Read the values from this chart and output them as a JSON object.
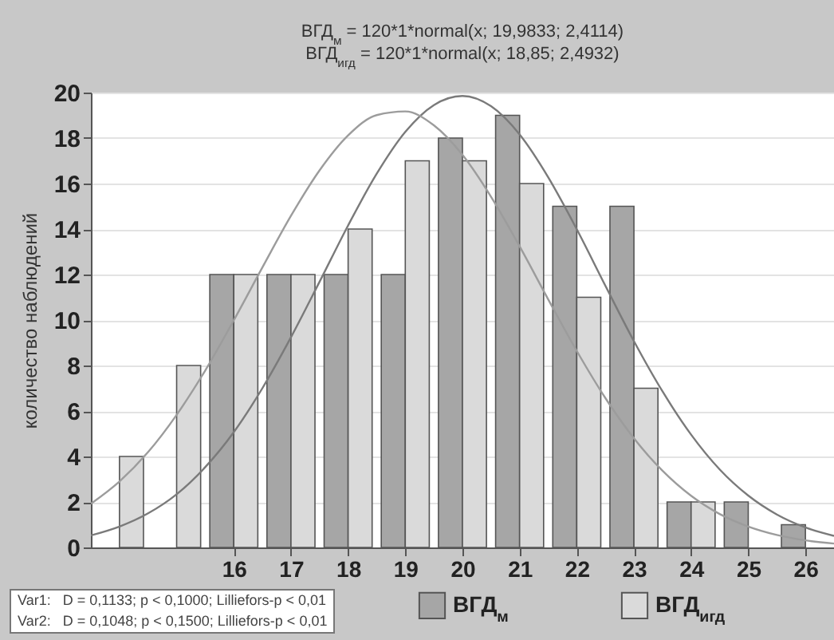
{
  "chart_data": {
    "type": "bar",
    "title": "ВГД$_{м}$ = 120*1*normal(x; 19,9833; 2,4114)",
    "subtitle": "ВГД$_{игд}$ = 120*1*normal(x; 18,85; 2,4932)",
    "ylabel": "количество наблюдений",
    "x": [
      14,
      15,
      16,
      17,
      18,
      19,
      20,
      21,
      22,
      23,
      24,
      25,
      26
    ],
    "xlim": [
      13.5,
      26.5
    ],
    "xticks": [
      16,
      17,
      18,
      19,
      20,
      21,
      22,
      23,
      24,
      25,
      26
    ],
    "ylim": [
      0,
      20
    ],
    "yticks": [
      0,
      2,
      4,
      6,
      8,
      10,
      12,
      14,
      16,
      18,
      20
    ],
    "grid": "y",
    "legend": "bottom",
    "annotations": [
      "Var1:   D = 0,1133; p < 0,1000; Lilliefors-p < 0,01",
      "Var2:   D = 0,1048; p < 0,1500; Lilliefors-p < 0,01"
    ],
    "series": [
      {
        "name": "ВГД$_{м}$",
        "color": "#a6a6a6",
        "values": [
          null,
          null,
          12,
          12,
          12,
          12,
          18,
          19,
          15,
          15,
          2,
          2,
          1
        ]
      },
      {
        "name": "ВГД$_{игд}$",
        "color": "#dadada",
        "values": [
          4,
          8,
          12,
          12,
          14,
          17,
          17,
          16,
          11,
          7,
          2,
          null,
          null
        ]
      },
      {
        "type": "line",
        "color": "#7a7a7a",
        "x": [
          13.5,
          14,
          14.5,
          15,
          15.5,
          16,
          16.5,
          17,
          17.5,
          18,
          18.5,
          19,
          19.5,
          20,
          20.5,
          21,
          21.5,
          22,
          22.5,
          23,
          23.5,
          24,
          24.5,
          25,
          25.5,
          26,
          26.5
        ],
        "values": [
          0.53,
          0.92,
          1.5,
          2.34,
          3.53,
          5.07,
          7.0,
          9.24,
          11.68,
          14.16,
          16.43,
          18.27,
          19.45,
          19.85,
          19.4,
          18.16,
          16.28,
          13.99,
          11.51,
          9.07,
          6.86,
          4.96,
          3.43,
          2.28,
          1.45,
          0.88,
          0.51
        ]
      },
      {
        "type": "line",
        "color": "#9c9c9c",
        "x": [
          13.5,
          14,
          14.5,
          15,
          15.5,
          16,
          16.5,
          17,
          17.5,
          18,
          18.5,
          19,
          19.5,
          20,
          20.5,
          21,
          21.5,
          22,
          22.5,
          23,
          23.5,
          24,
          24.5,
          25,
          25.5,
          26,
          26.5
        ],
        "values": [
          1.92,
          2.9,
          4.19,
          5.83,
          7.78,
          9.99,
          12.31,
          14.58,
          16.58,
          18.12,
          19.01,
          19.17,
          18.56,
          17.26,
          15.42,
          13.24,
          10.91,
          8.64,
          6.57,
          4.8,
          3.37,
          2.27,
          1.47,
          0.92,
          0.55,
          0.31,
          0.17
        ]
      }
    ]
  }
}
